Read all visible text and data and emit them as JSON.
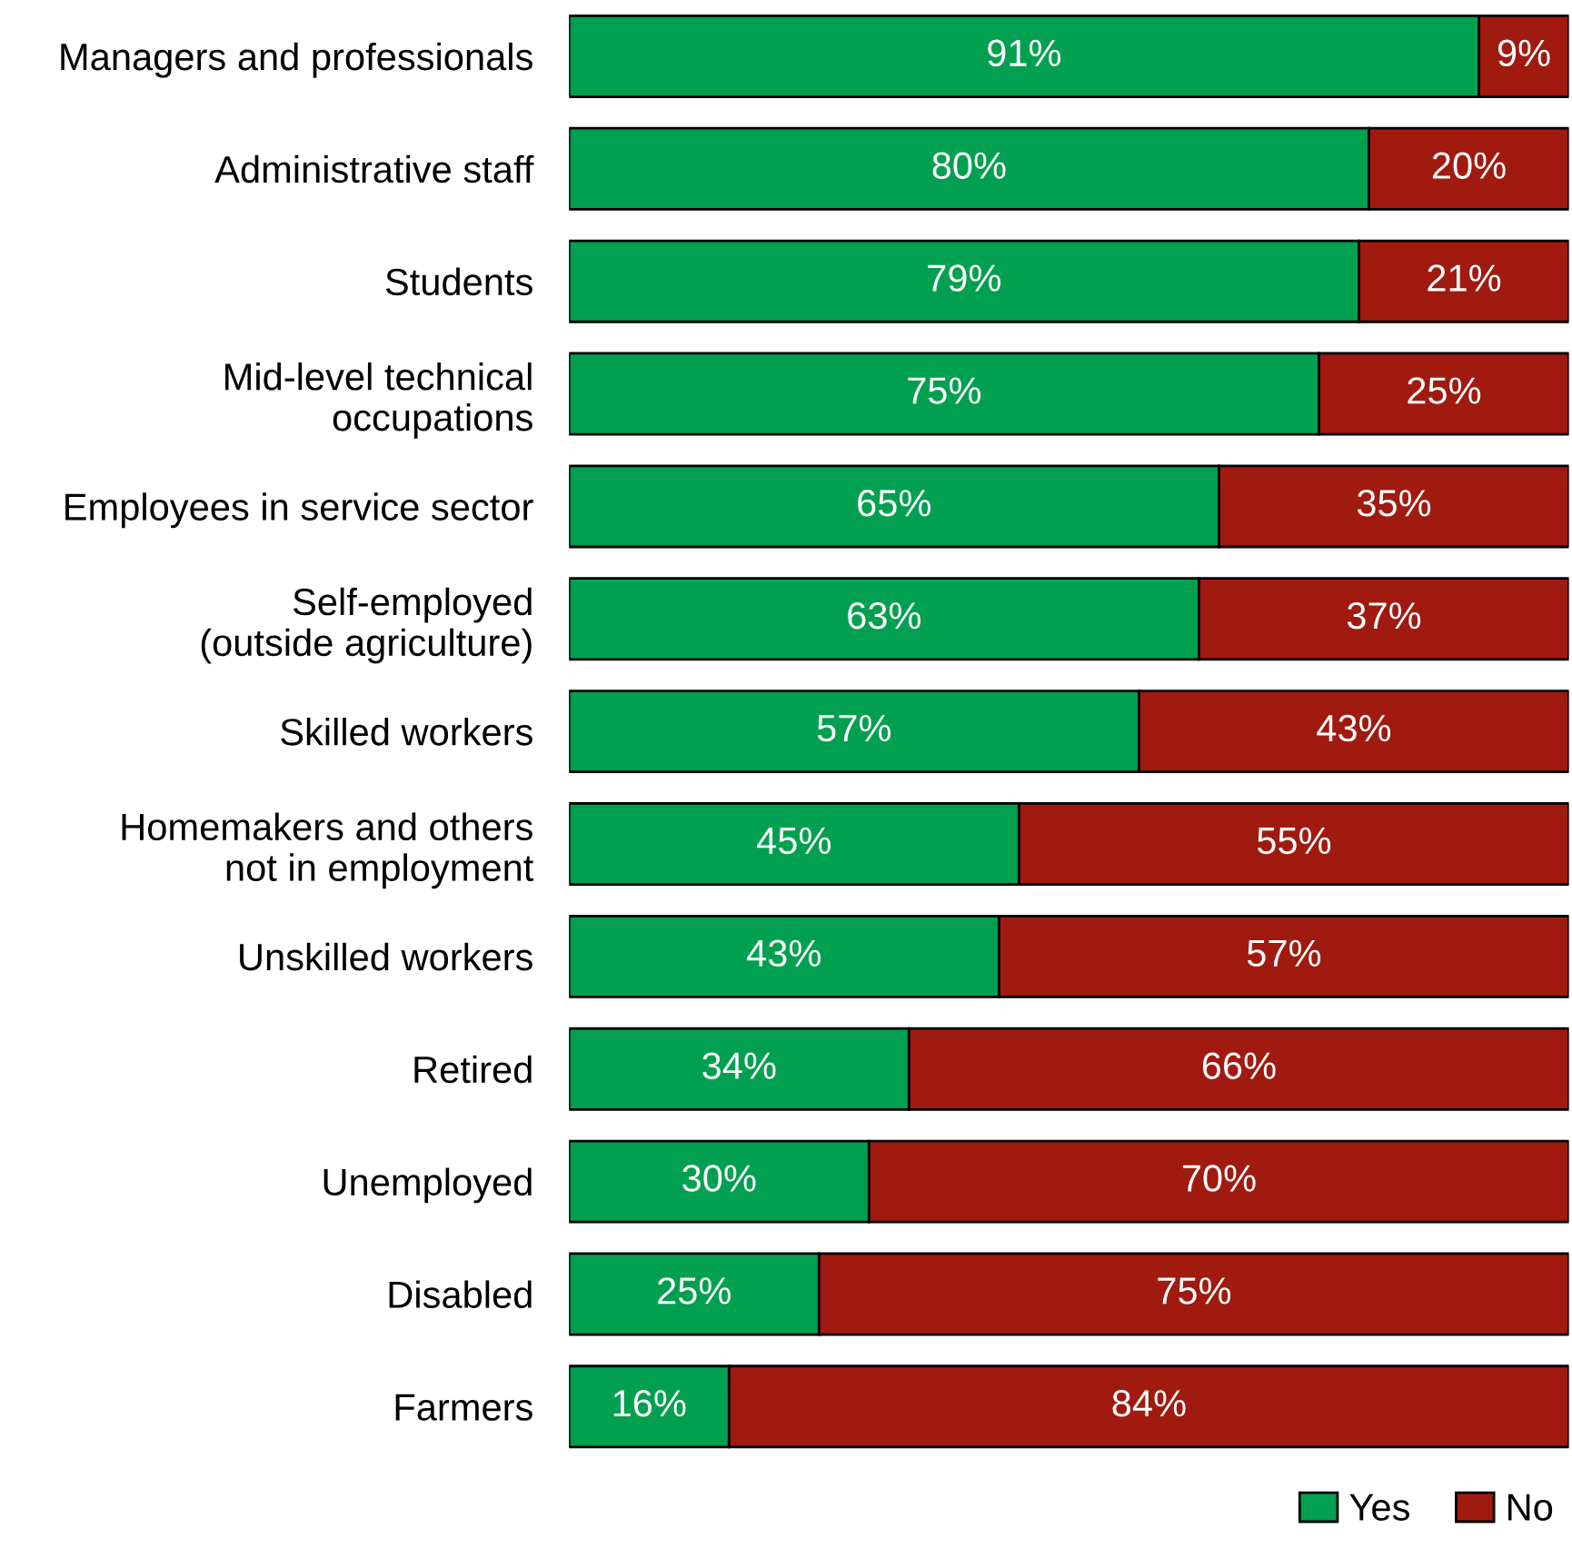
{
  "chart_data": {
    "type": "bar",
    "orientation": "horizontal",
    "stacked": true,
    "categories": [
      "Managers and professionals",
      "Administrative staff",
      "Students",
      "Mid-level technical\noccupations",
      "Employees in service sector",
      "Self-employed\n(outside agriculture)",
      "Skilled workers",
      "Homemakers and others\nnot in employment",
      "Unskilled workers",
      "Retired",
      "Unemployed",
      "Disabled",
      "Farmers"
    ],
    "series": [
      {
        "name": "Yes",
        "color": "#00a050",
        "values": [
          91,
          80,
          79,
          75,
          65,
          63,
          57,
          45,
          43,
          34,
          30,
          25,
          16
        ],
        "value_labels": [
          "91%",
          "80%",
          "79%",
          "75%",
          "65%",
          "63%",
          "57%",
          "45%",
          "43%",
          "34%",
          "30%",
          "25%",
          "16%"
        ]
      },
      {
        "name": "No",
        "color": "#a01a10",
        "values": [
          9,
          20,
          21,
          25,
          35,
          37,
          43,
          55,
          57,
          66,
          70,
          75,
          84
        ],
        "value_labels": [
          "9%",
          "20%",
          "21%",
          "25%",
          "35%",
          "37%",
          "43%",
          "55%",
          "57%",
          "66%",
          "70%",
          "75%",
          "84%"
        ]
      }
    ],
    "xlim": [
      0,
      100
    ],
    "tick_labels": "y",
    "grid": false,
    "legend": "bottom right"
  }
}
